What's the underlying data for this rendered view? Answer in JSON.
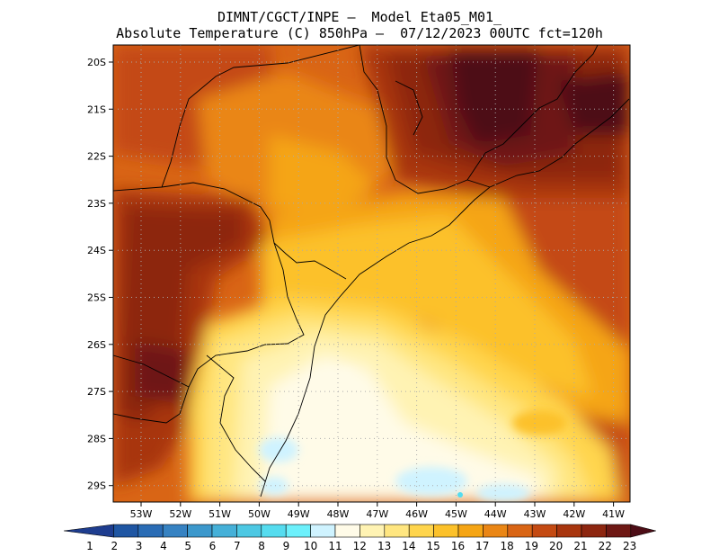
{
  "title_line1": "DIMNT/CGCT/INPE —  Model Eta05_M01_",
  "title_line2": "Absolute Temperature (C) 850hPa —  07/12/2023 00UTC fct=120h",
  "lat_labels": [
    "20S",
    "21S",
    "22S",
    "23S",
    "24S",
    "25S",
    "26S",
    "27S",
    "28S",
    "29S"
  ],
  "lon_labels": [
    "53W",
    "52W",
    "51W",
    "50W",
    "49W",
    "48W",
    "47W",
    "46W",
    "45W",
    "44W",
    "43W",
    "42W",
    "41W"
  ],
  "colorbar": {
    "values": [
      "1",
      "2",
      "3",
      "4",
      "5",
      "6",
      "7",
      "8",
      "9",
      "10",
      "11",
      "12",
      "13",
      "14",
      "15",
      "16",
      "17",
      "18",
      "19",
      "20",
      "21",
      "22",
      "23"
    ],
    "colors": [
      "#1e3d8f",
      "#1f56a3",
      "#2a6cb5",
      "#3682c2",
      "#3c98cc",
      "#45b0d8",
      "#4dc8e3",
      "#55dcef",
      "#6cf0fb",
      "#cff3ff",
      "#fffbe8",
      "#fff3b3",
      "#ffe680",
      "#ffd54d",
      "#fcc12a",
      "#f5a515",
      "#ea8615",
      "#d96515",
      "#c44a12",
      "#a8350e",
      "#8d2610",
      "#6e1814",
      "#4d0d16"
    ]
  },
  "map_data": {
    "type": "temperature-field",
    "variable": "Absolute Temperature (C)",
    "level": "850hPa",
    "domain": {
      "lon_range": [
        -53.5,
        -40.5
      ],
      "lat_range": [
        -29.5,
        -19.7
      ]
    },
    "hot_zone": "northeast interior (~22-23C)",
    "cool_zone": "south coast / offshore (~10-12C)"
  }
}
